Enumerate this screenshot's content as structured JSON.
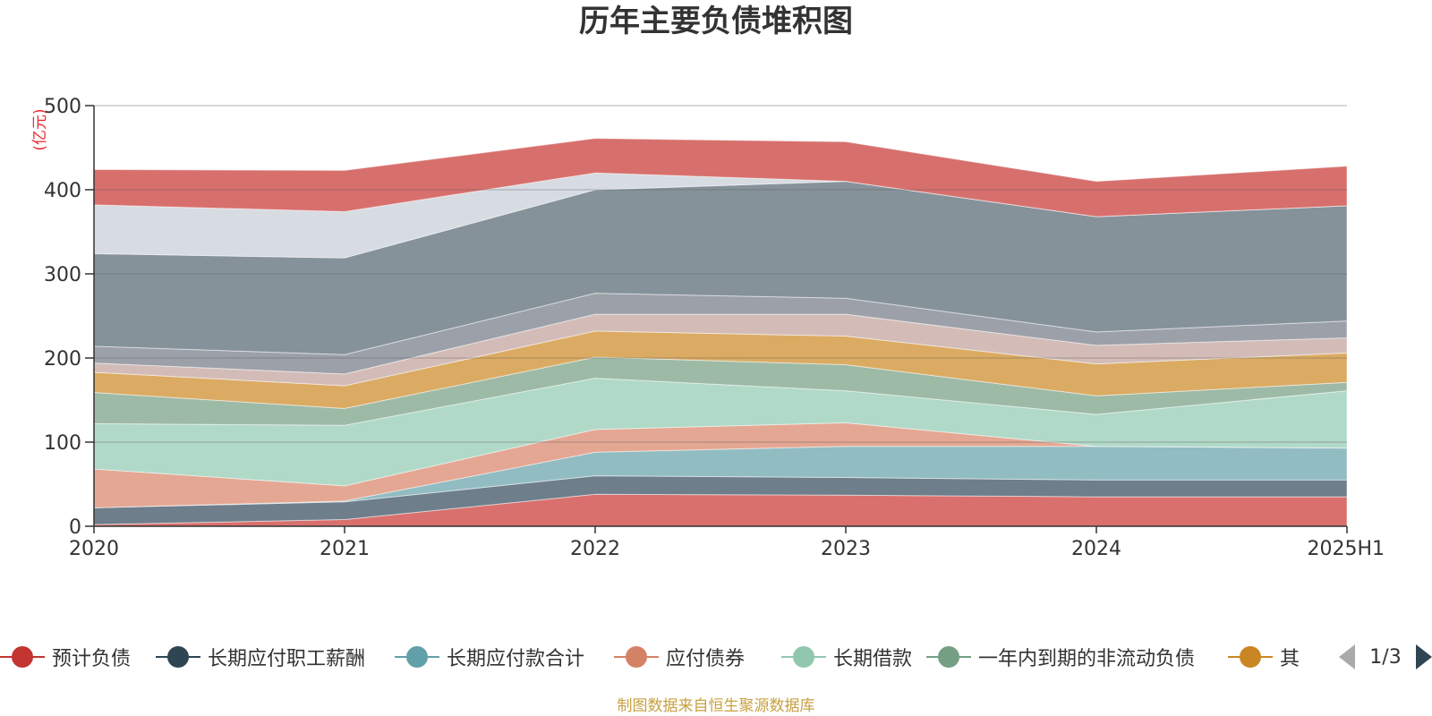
{
  "chart_data": {
    "type": "area",
    "stacked": true,
    "title": "历年主要负债堆积图",
    "ylabel": "(亿元)",
    "x": [
      "2020",
      "2021",
      "2022",
      "2023",
      "2024",
      "2025H1"
    ],
    "y_ticks": [
      "0",
      "100",
      "200",
      "300",
      "400",
      "500"
    ],
    "ylim": [
      0,
      500
    ],
    "grid": true,
    "series": [
      {
        "name": "预计负债",
        "color": "#d9706d",
        "values": [
          2,
          8,
          38,
          37,
          35,
          35
        ]
      },
      {
        "name": "长期应付职工薪酬",
        "color": "#6e7e8b",
        "values": [
          20,
          21,
          22,
          21,
          20,
          20
        ]
      },
      {
        "name": "长期应付款合计",
        "color": "#91bcc2",
        "values": [
          0,
          1,
          28,
          37,
          40,
          38
        ]
      },
      {
        "name": "应付债券",
        "color": "#e4a793",
        "values": [
          46,
          18,
          27,
          28,
          0,
          0
        ]
      },
      {
        "name": "长期借款",
        "color": "#b0d9c8",
        "values": [
          54,
          72,
          61,
          38,
          38,
          68
        ]
      },
      {
        "name": "一年内到期的非流动负债",
        "color": "#9dbaa6",
        "values": [
          37,
          20,
          25,
          31,
          22,
          10
        ]
      },
      {
        "name": "其他",
        "color": "#dbab63",
        "values": [
          24,
          27,
          31,
          34,
          38,
          35
        ]
      },
      {
        "name": "",
        "color": "#d3bcb8",
        "values": [
          11,
          14,
          20,
          26,
          22,
          18
        ]
      },
      {
        "name": "",
        "color": "#9ca0a8",
        "values": [
          20,
          23,
          25,
          19,
          16,
          20
        ]
      },
      {
        "name": "",
        "color": "#85929a",
        "values": [
          110,
          115,
          123,
          139,
          137,
          137
        ]
      },
      {
        "name": "",
        "color": "#d7dbe2",
        "values": [
          58,
          55,
          20,
          0,
          0,
          0
        ]
      },
      {
        "name": "",
        "color": "#d7706d",
        "values": [
          42,
          49,
          41,
          47,
          42,
          47
        ]
      }
    ],
    "legend_position": "bottom",
    "legend_page": "1/3"
  },
  "legend": {
    "items": [
      {
        "label": "预计负债",
        "color": "#c23531"
      },
      {
        "label": "长期应付职工薪酬",
        "color": "#2f4554"
      },
      {
        "label": "长期应付款合计",
        "color": "#61a0a8"
      },
      {
        "label": "应付债券",
        "color": "#d48265"
      },
      {
        "label": "长期借款",
        "color": "#91c7ae"
      },
      {
        "label": "一年内到期的非流动负债",
        "color": "#749f83"
      },
      {
        "label": "其",
        "color": "#ca8622"
      }
    ],
    "page": "1/3"
  },
  "footer": {
    "source": "制图数据来自恒生聚源数据库"
  },
  "colors": {
    "axis": "#333333",
    "grid": "#cccccc",
    "ylabel": "#e8282d",
    "source_text": "#c8a040"
  }
}
